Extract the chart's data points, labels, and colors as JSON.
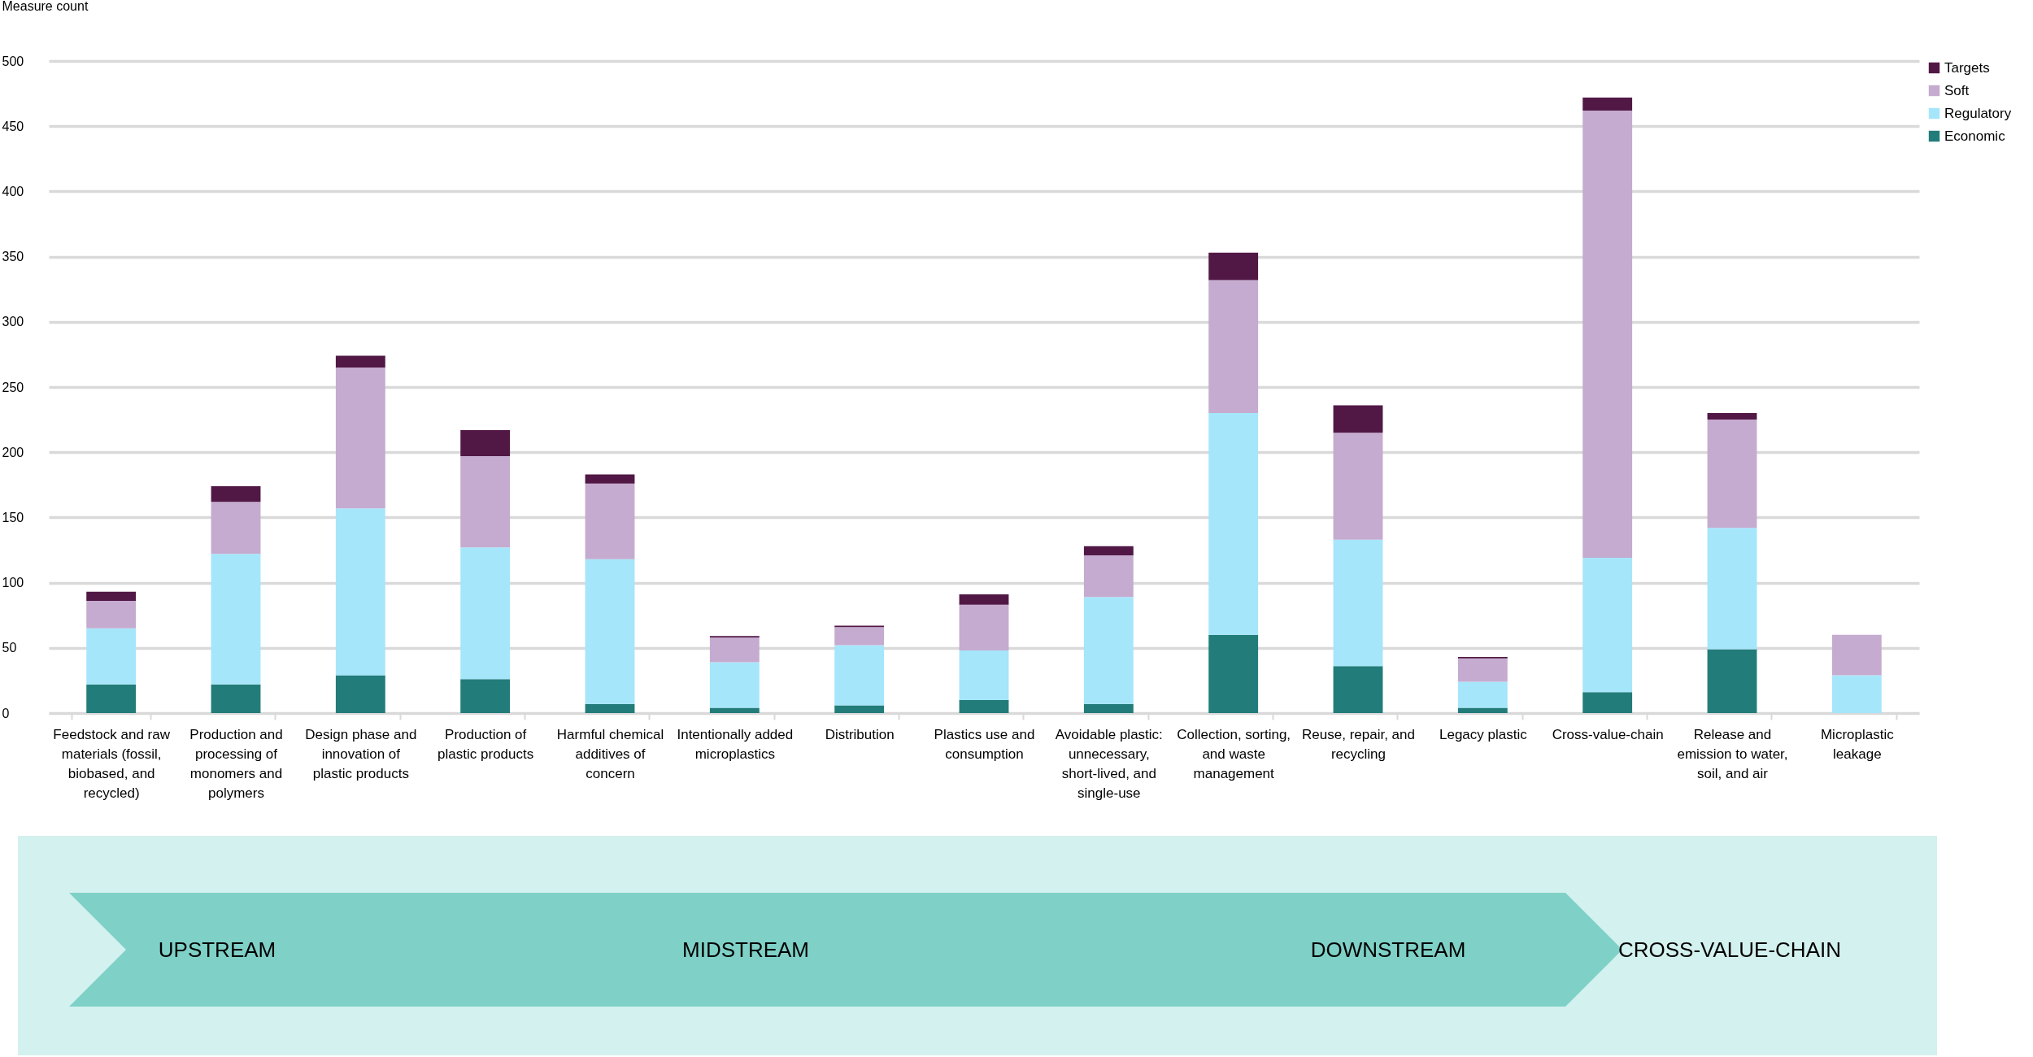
{
  "chart_data": {
    "type": "bar",
    "stacked": true,
    "ylabel": "Measure count",
    "categories": [
      "Feedstock and raw materials (fossil, biobased, and recycled)",
      "Production and processing of monomers and polymers",
      "Design phase and innovation of plastic products",
      "Production of plastic products",
      "Harmful chemical additives of concern",
      "Intentionally added microplastics",
      "Distribution",
      "Plastics use and consumption",
      "Avoidable plastic: unnecessary, short-lived, and single-use",
      "Collection, sorting, and waste management",
      "Reuse, repair, and recycling",
      "Legacy plastic",
      "Cross-value-chain",
      "Release and emission to water, soil, and air",
      "Microplastic leakage"
    ],
    "series": [
      {
        "name": "Economic",
        "color": "#227c7a",
        "values": [
          22,
          22,
          29,
          26,
          7,
          4,
          6,
          10,
          7,
          60,
          36,
          4,
          16,
          49,
          0
        ]
      },
      {
        "name": "Regulatory",
        "color": "#a5e6fb",
        "values": [
          43,
          100,
          128,
          101,
          111,
          35,
          46,
          38,
          82,
          170,
          97,
          20,
          103,
          93,
          29
        ]
      },
      {
        "name": "Soft",
        "color": "#c5abcf",
        "values": [
          21,
          40,
          108,
          70,
          58,
          19,
          14,
          35,
          32,
          102,
          82,
          18,
          343,
          83,
          31
        ]
      },
      {
        "name": "Targets",
        "color": "#511846",
        "values": [
          7,
          12,
          9,
          20,
          7,
          1,
          1,
          8,
          7,
          21,
          21,
          1,
          10,
          5,
          0
        ]
      }
    ],
    "ylim": [
      0,
      500
    ],
    "yticks": [
      0,
      50,
      100,
      150,
      200,
      250,
      300,
      350,
      400,
      450,
      500
    ],
    "grid": "y",
    "legend": "top right",
    "annotations": [
      "UPSTREAM",
      "MIDSTREAM",
      "DOWNSTREAM",
      "CROSS-VALUE-CHAIN"
    ]
  }
}
